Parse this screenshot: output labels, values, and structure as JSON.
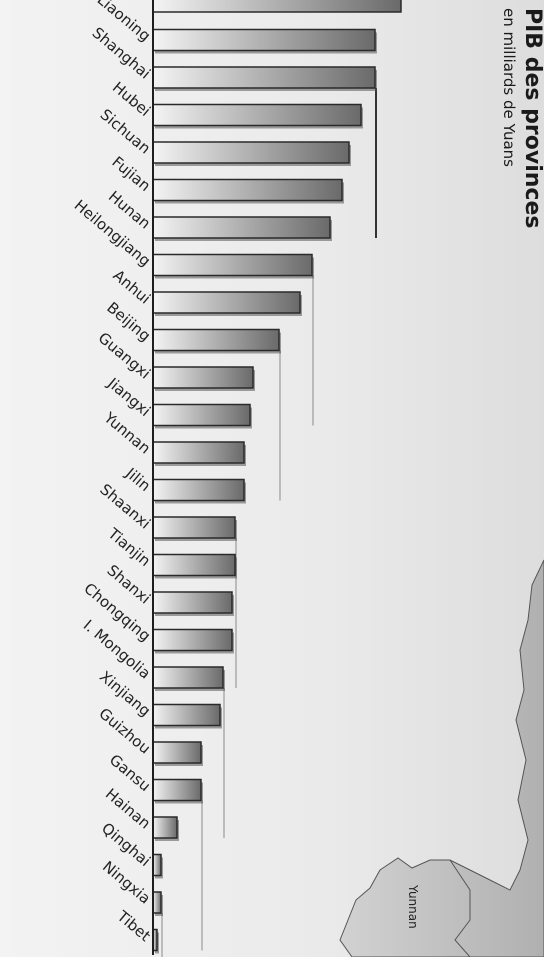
{
  "title": "PIB des provinces",
  "subtitle": "en milliards de Yuans",
  "map_label": "Yunnan",
  "colors": {
    "bar_light": "#f4f4f4",
    "bar_dark": "#6a6a6a",
    "bar_outline": "#2a2a2a",
    "guide_line": "#8a8a8a",
    "map_fill": "#b5b5b5",
    "map_fill_light": "#d2d2d2"
  },
  "chart_data": {
    "type": "bar",
    "orientation": "horizontal",
    "title": "PIB des provinces",
    "subtitle": "en milliards de Yuans",
    "categories": [
      "Liaoning",
      "Shanghai",
      "Hubei",
      "Sichuan",
      "Fujian",
      "Hunan",
      "Heilongjiang",
      "Anhui",
      "Beijing",
      "Guangxi",
      "Jiangxi",
      "Yunnan",
      "Jilin",
      "Shaanxi",
      "Tianjin",
      "Shanxi",
      "Chongqing",
      "I. Mongolia",
      "Xinjiang",
      "Guizhou",
      "Gansu",
      "Hainan",
      "Qinghai",
      "Ningxia",
      "Tibet"
    ],
    "values": [
      222,
      222,
      208,
      196,
      189,
      177,
      159,
      147,
      126,
      100,
      97,
      91,
      91,
      82,
      82,
      79,
      79,
      70,
      67,
      48,
      48,
      24,
      8,
      8,
      4
    ],
    "partial_top_bar_value": 248,
    "grid": false
  }
}
